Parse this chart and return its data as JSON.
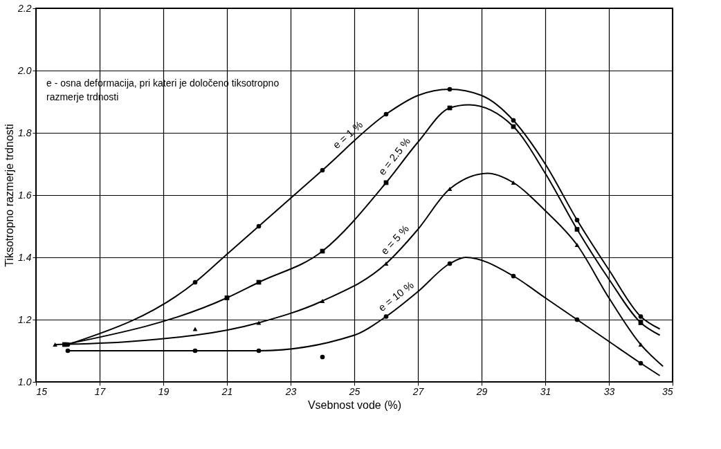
{
  "chart_data": {
    "type": "line",
    "xlabel": "Vsebnost vode (%)",
    "ylabel": "Tiksotropno razmerje trdnosti",
    "xlim": [
      15,
      35
    ],
    "xticks": [
      15,
      17,
      19,
      21,
      23,
      25,
      27,
      29,
      31,
      33,
      35
    ],
    "ylim": [
      1.0,
      2.2
    ],
    "yticks": [
      {
        "value": 1.0,
        "label": "1.0"
      },
      {
        "value": 1.2,
        "label": "1.2"
      },
      {
        "value": 1.4,
        "label": "1.4"
      },
      {
        "value": 1.6,
        "label": "1.6"
      },
      {
        "value": 1.8,
        "label": "1.8"
      },
      {
        "value": 2.0,
        "label": "2.0"
      },
      {
        "value": 2.2,
        "label": "2.2"
      }
    ],
    "grid": true,
    "legend": false,
    "line_style": "solid",
    "series": [
      {
        "name": "e = 1 %",
        "color": "#000000",
        "marker": "none",
        "x": [
          16,
          20,
          21,
          22,
          24,
          26,
          27,
          28,
          29,
          30,
          31,
          32,
          33,
          34,
          34.6
        ],
        "values": [
          1.12,
          1.32,
          1.41,
          1.5,
          1.68,
          1.86,
          1.92,
          1.94,
          1.92,
          1.84,
          1.7,
          1.52,
          1.36,
          1.21,
          1.17
        ]
      },
      {
        "name": "e = 2.5 %",
        "color": "#000000",
        "marker": "none",
        "x": [
          15.9,
          21,
          22,
          24,
          26,
          27,
          28,
          28.6,
          30,
          31,
          32,
          33,
          34,
          34.6
        ],
        "values": [
          1.12,
          1.27,
          1.32,
          1.42,
          1.64,
          1.77,
          1.88,
          1.89,
          1.82,
          1.67,
          1.49,
          1.33,
          1.19,
          1.15
        ]
      },
      {
        "name": "e = 5 %",
        "color": "#000000",
        "marker": "none",
        "x": [
          15.6,
          18,
          22,
          24,
          26,
          27,
          28,
          29.2,
          30,
          31,
          32,
          33,
          34,
          34.7
        ],
        "values": [
          1.12,
          1.13,
          1.19,
          1.26,
          1.38,
          1.49,
          1.62,
          1.67,
          1.64,
          1.55,
          1.44,
          1.27,
          1.12,
          1.05
        ]
      },
      {
        "name": "e = 10 %",
        "color": "#000000",
        "marker": "none",
        "x": [
          16,
          20,
          22,
          25,
          26,
          27,
          28,
          28.5,
          30,
          31,
          32,
          33,
          34,
          34.6
        ],
        "values": [
          1.1,
          1.1,
          1.1,
          1.15,
          1.21,
          1.29,
          1.38,
          1.4,
          1.34,
          1.27,
          1.2,
          1.13,
          1.06,
          1.02
        ]
      },
      {
        "type": "scatter",
        "color": "#000000",
        "marker": "circle",
        "x": [
          16,
          20,
          22,
          24,
          26,
          28,
          30,
          32,
          34
        ],
        "values": [
          1.12,
          1.32,
          1.5,
          1.68,
          1.86,
          1.94,
          1.84,
          1.52,
          1.21
        ]
      },
      {
        "type": "scatter",
        "color": "#000000",
        "marker": "square",
        "x": [
          15.9,
          21,
          22,
          24,
          26,
          28,
          30,
          32,
          34
        ],
        "values": [
          1.12,
          1.27,
          1.32,
          1.42,
          1.64,
          1.88,
          1.82,
          1.49,
          1.19
        ]
      },
      {
        "type": "scatter",
        "color": "#000000",
        "marker": "triangle",
        "x": [
          15.6,
          20,
          22,
          24,
          26,
          28,
          30,
          32,
          34
        ],
        "values": [
          1.12,
          1.17,
          1.19,
          1.26,
          1.38,
          1.62,
          1.64,
          1.44,
          1.12
        ]
      },
      {
        "type": "scatter",
        "color": "#000000",
        "marker": "circle",
        "x": [
          16,
          20,
          22,
          24,
          26,
          28,
          30,
          32,
          34
        ],
        "values": [
          1.1,
          1.1,
          1.1,
          1.08,
          1.21,
          1.38,
          1.34,
          1.2,
          1.06
        ]
      }
    ],
    "annotations": [
      "e - osna deformacija, pri kateri je določeno tiksotropno\n     razmerje trdnosti"
    ]
  }
}
